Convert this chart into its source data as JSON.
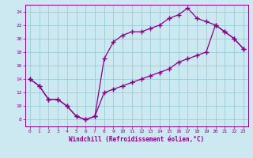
{
  "xlabel": "Windchill (Refroidissement éolien,°C)",
  "background_color": "#cce8f0",
  "grid_color": "#99ccd8",
  "line_color": "#880088",
  "spine_color": "#880088",
  "xlim": [
    -0.5,
    23.5
  ],
  "ylim": [
    7,
    25
  ],
  "xticks": [
    0,
    1,
    2,
    3,
    4,
    5,
    6,
    7,
    8,
    9,
    10,
    11,
    12,
    13,
    14,
    15,
    16,
    17,
    18,
    19,
    20,
    21,
    22,
    23
  ],
  "yticks": [
    8,
    10,
    12,
    14,
    16,
    18,
    20,
    22,
    24
  ],
  "line1_x": [
    0,
    1,
    2,
    3,
    4,
    5,
    6,
    7,
    8,
    9,
    10,
    11,
    12,
    13,
    14,
    15,
    16,
    17,
    18,
    19,
    20,
    21,
    22,
    23
  ],
  "line1_y": [
    14,
    13,
    11,
    11,
    10,
    8.5,
    8,
    8.5,
    17,
    19.5,
    20.5,
    21,
    21,
    21.5,
    22,
    23,
    23.5,
    24.5,
    23,
    22.5,
    22,
    21,
    20,
    18.5
  ],
  "line2_x": [
    0,
    1,
    2,
    3,
    4,
    5,
    6,
    7,
    8,
    9,
    10,
    11,
    12,
    13,
    14,
    15,
    16,
    17,
    18,
    19,
    20,
    21,
    22,
    23
  ],
  "line2_y": [
    14,
    13,
    11,
    11,
    10,
    8.5,
    8,
    8.5,
    12,
    12.5,
    13,
    13.5,
    14,
    14.5,
    15,
    15.5,
    16.5,
    17,
    17.5,
    18,
    22,
    21,
    20,
    18.5
  ],
  "marker": "+",
  "marker_size": 4,
  "marker_lw": 1.0,
  "line_width": 0.9,
  "tick_fontsize": 4.5,
  "xlabel_fontsize": 5.5
}
